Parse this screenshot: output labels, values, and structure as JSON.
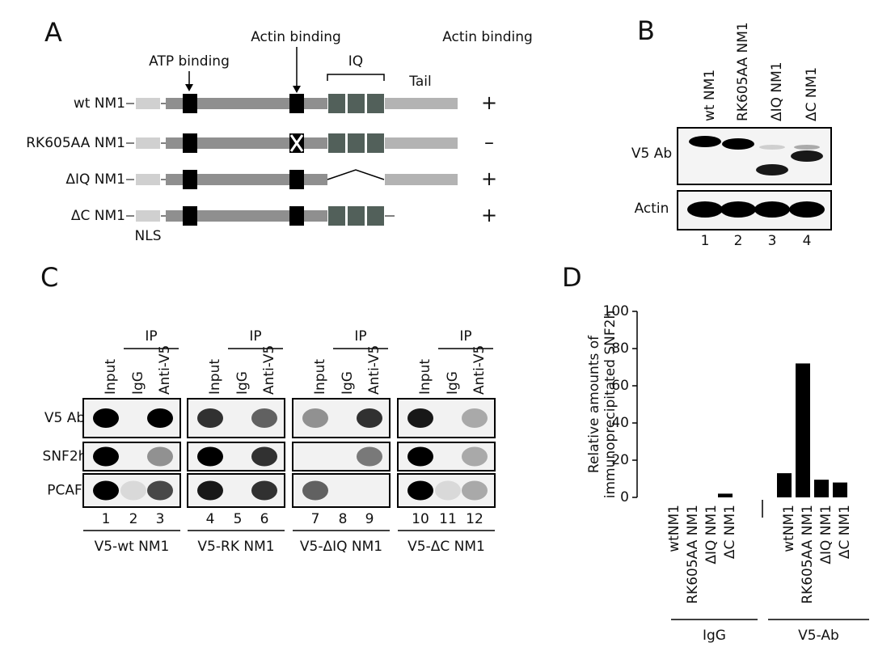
{
  "panels": {
    "a": {
      "label": "A",
      "atp_binding": "ATP binding",
      "actin_binding": "Actin binding",
      "iq": "IQ",
      "tail": "Tail",
      "nls": "NLS",
      "result_header": "Actin binding",
      "constructs": [
        {
          "name": "wt NM1",
          "result": "+"
        },
        {
          "name": "RK605AA NM1",
          "result": "–"
        },
        {
          "name": "ΔIQ NM1",
          "result": "+"
        },
        {
          "name": "ΔC NM1",
          "result": "+"
        }
      ]
    },
    "b": {
      "label": "B",
      "lanes": [
        "wt NM1",
        "RK605AA NM1",
        "ΔIQ NM1",
        "ΔC NM1"
      ],
      "rows": [
        "V5 Ab",
        "Actin"
      ],
      "lane_numbers": [
        "1",
        "2",
        "3",
        "4"
      ]
    },
    "c": {
      "label": "C",
      "ip": "IP",
      "columns": [
        "Input",
        "IgG",
        "Anti-V5"
      ],
      "rows": [
        "V5 Ab",
        "SNF2h",
        "PCAF"
      ],
      "blots": [
        {
          "name": "V5-wt NM1",
          "lanes": [
            "1",
            "2",
            "3"
          ]
        },
        {
          "name": "V5-RK NM1",
          "lanes": [
            "4",
            "5",
            "6"
          ]
        },
        {
          "name": "V5-ΔIQ NM1",
          "lanes": [
            "7",
            "8",
            "9"
          ]
        },
        {
          "name": "V5-ΔC NM1",
          "lanes": [
            "10",
            "11",
            "12"
          ]
        }
      ]
    },
    "d": {
      "label": "D"
    }
  },
  "chart_data": {
    "type": "bar",
    "ylabel_lines": [
      "Relative amounts of",
      "immunoprecipitated SNF2h"
    ],
    "categories": [
      "wtNM1",
      "RK605AA NM1",
      "ΔIQ NM1",
      "ΔC NM1",
      "wtNM1",
      "RK605AA NM1",
      "ΔIQ NM1",
      "ΔC NM1"
    ],
    "values": [
      0,
      0,
      0,
      2,
      13,
      72,
      9.5,
      8
    ],
    "groups": [
      {
        "name": "IgG"
      },
      {
        "name": "V5-Ab"
      }
    ],
    "color": "#000000",
    "ylim": [
      0,
      100
    ],
    "yticks": [
      0,
      20,
      40,
      60,
      80,
      100
    ],
    "grid": false
  }
}
